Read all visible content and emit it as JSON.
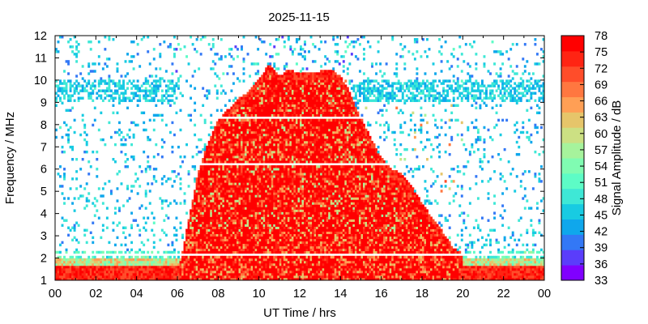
{
  "chart_data": {
    "type": "heatmap",
    "title": "2025-11-15",
    "xlabel": "UT Time / hrs",
    "ylabel": "Frequency / MHz",
    "colorbar_label": "Signal Amplitude / dB",
    "xlim": [
      0,
      24
    ],
    "ylim": [
      1,
      12
    ],
    "x_ticks": [
      "00",
      "02",
      "04",
      "06",
      "08",
      "10",
      "12",
      "14",
      "16",
      "18",
      "20",
      "22",
      "00"
    ],
    "y_ticks": [
      "1",
      "2",
      "3",
      "4",
      "5",
      "6",
      "7",
      "8",
      "9",
      "10",
      "11",
      "12"
    ],
    "color_scale": {
      "min": 33,
      "max": 78,
      "ticks": [
        "33",
        "36",
        "39",
        "42",
        "45",
        "48",
        "51",
        "54",
        "57",
        "60",
        "63",
        "66",
        "69",
        "72",
        "75",
        "78"
      ],
      "colors": [
        "#8000ff",
        "#5a3dfb",
        "#3378f6",
        "#0fa7ec",
        "#18cbe2",
        "#3ee8d6",
        "#5dfcc6",
        "#80fcb2",
        "#a6f39c",
        "#cce083",
        "#e6c56a",
        "#ff9f55",
        "#ff7740",
        "#ff4d2a",
        "#ff2413",
        "#ff0000"
      ]
    },
    "plasma_region": {
      "description_free": true,
      "upper_envelope_mhz": [
        [
          6.0,
          1.2
        ],
        [
          6.5,
          3.5
        ],
        [
          7.0,
          5.8
        ],
        [
          7.5,
          7.2
        ],
        [
          8.0,
          8.2
        ],
        [
          8.5,
          8.7
        ],
        [
          9.0,
          9.2
        ],
        [
          9.5,
          9.5
        ],
        [
          10.0,
          10.1
        ],
        [
          10.5,
          10.7
        ],
        [
          11.0,
          10.2
        ],
        [
          11.5,
          10.5
        ],
        [
          12.0,
          10.3
        ],
        [
          12.5,
          10.4
        ],
        [
          13.0,
          10.4
        ],
        [
          13.5,
          10.5
        ],
        [
          14.0,
          10.2
        ],
        [
          14.5,
          9.4
        ],
        [
          15.0,
          8.3
        ],
        [
          15.5,
          7.4
        ],
        [
          16.0,
          6.5
        ],
        [
          16.5,
          6.0
        ],
        [
          17.0,
          5.8
        ],
        [
          17.5,
          5.2
        ],
        [
          18.0,
          4.5
        ],
        [
          18.5,
          3.8
        ],
        [
          19.0,
          3.2
        ],
        [
          19.5,
          2.5
        ],
        [
          20.0,
          2.2
        ]
      ],
      "peak_amplitude_db": 78,
      "low_band_ceiling_mhz": 2.0,
      "blank_lines_mhz": [
        2.2,
        6.25,
        8.3
      ]
    },
    "noise_band_mhz": [
      9.0,
      10.0
    ],
    "noise_upper_band_mhz": [
      10.0,
      12.0
    ],
    "grid": false,
    "legend": "colorbar-right"
  }
}
